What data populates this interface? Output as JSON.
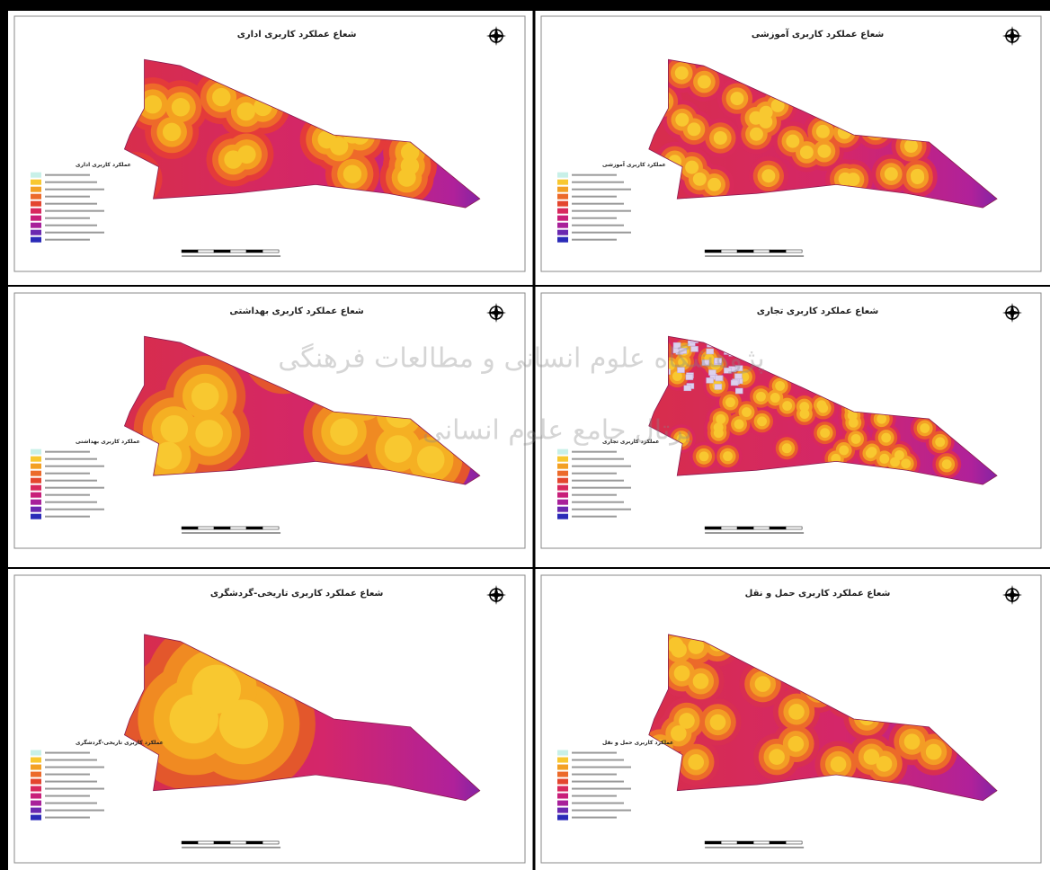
{
  "panels": [
    {
      "title": "شعاع عملکرد کاربری اداری",
      "legend_title": "عملکرد کاربری اداری"
    },
    {
      "title": "شعاع عملکرد کاربری آموزشی",
      "legend_title": "عملکرد کاربری آموزشی"
    },
    {
      "title": "شعاع عملکرد کاربری بهداشتی",
      "legend_title": "عملکرد کاربری بهداشتی"
    },
    {
      "title": "شعاع عملکرد کاربری تجاری",
      "legend_title": "عملکرد کاربری تجاری"
    },
    {
      "title": "شعاع عملکرد کاربری تاریخی-گردشگری",
      "legend_title": "عملکرد کاربری تاریخی-گردشگری"
    },
    {
      "title": "شعاع عملکرد کاربری حمل و نقل",
      "legend_title": "عملکرد کاربری حمل و نقل"
    }
  ],
  "watermark": [
    "پژوهشگاه علوم انسانی و مطالعات فرهنگی",
    "پرتال جامع علوم انسانی"
  ]
}
